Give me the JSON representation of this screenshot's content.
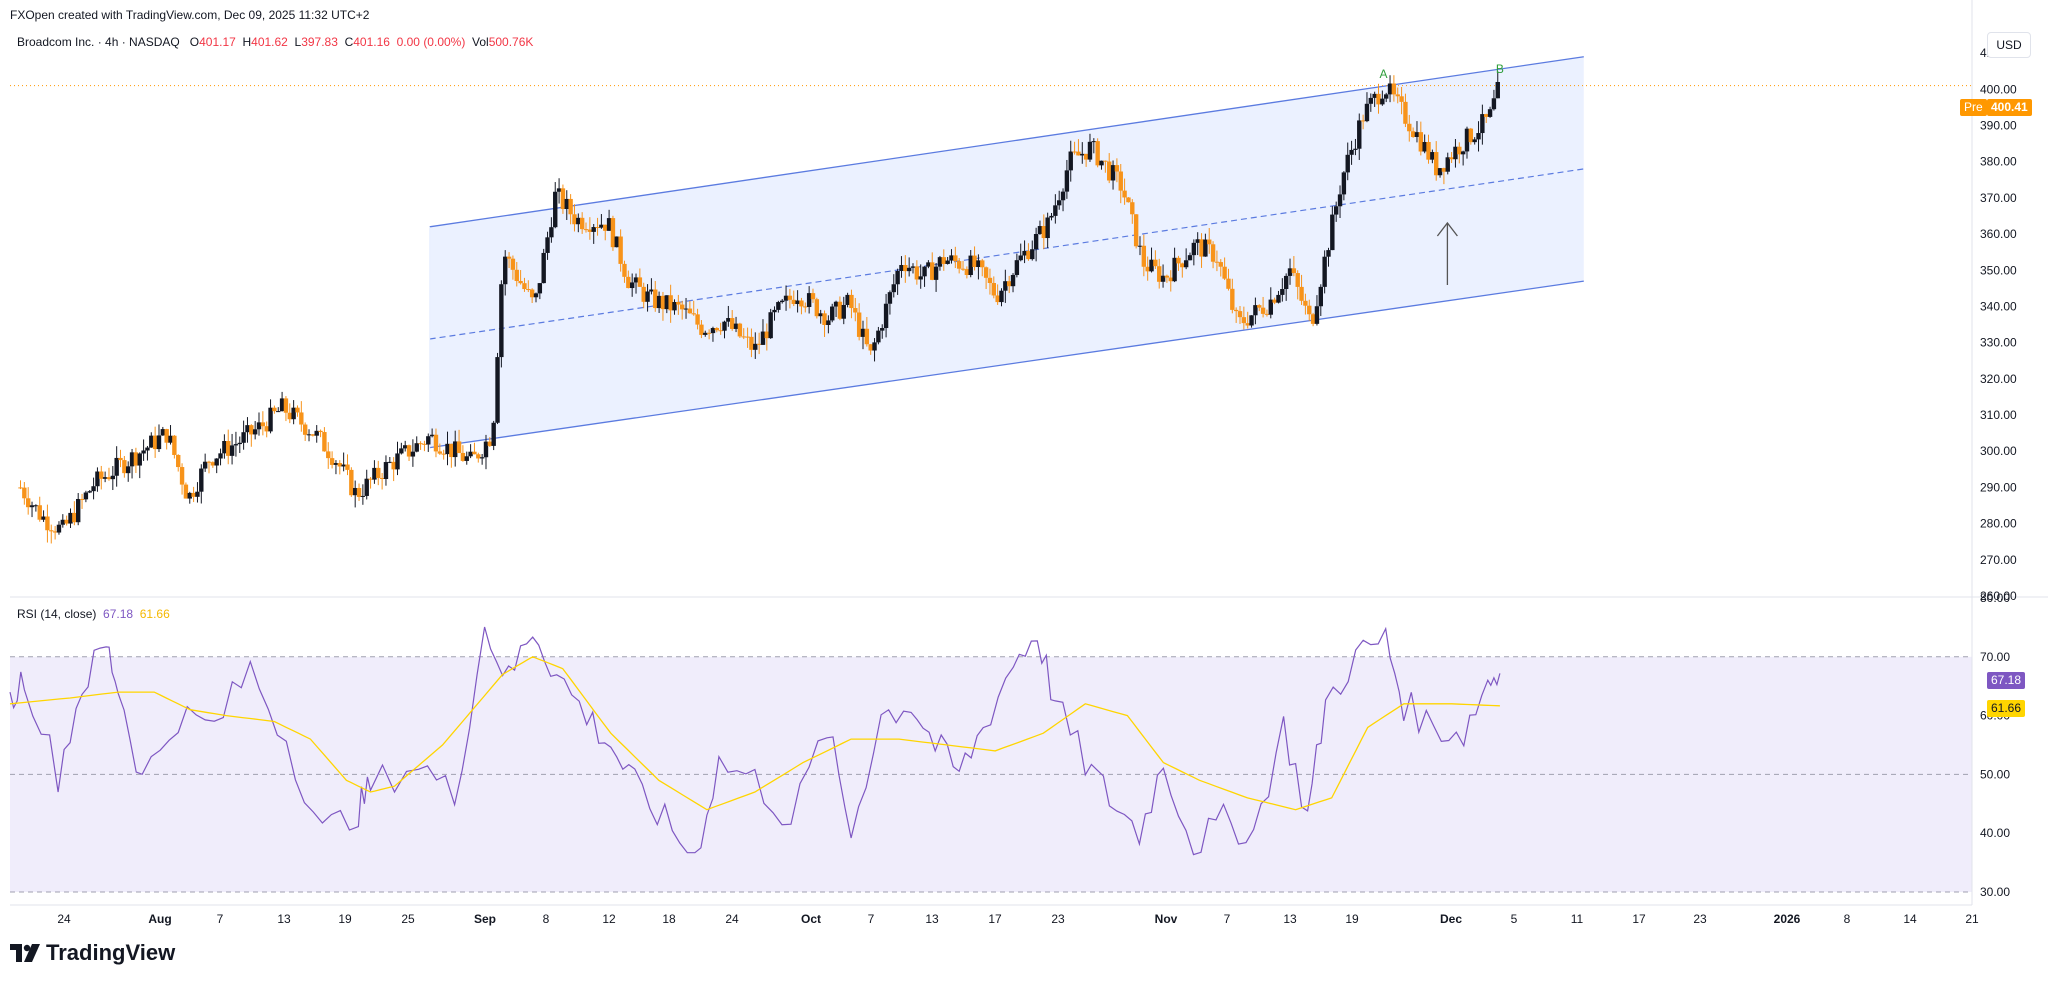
{
  "header": {
    "credit": "FXOpen created with TradingView.com, Dec 09, 2025 11:32 UTC+2",
    "symbol": "Broadcom Inc. · 4h · NASDAQ",
    "o_label": "O",
    "o": "401.17",
    "h_label": "H",
    "h": "401.62",
    "l_label": "L",
    "l": "397.83",
    "c_label": "C",
    "c": "401.16",
    "chg": "0.00 (0.00%)",
    "vol_label": "Vol",
    "vol": "500.76K"
  },
  "currency": "USD",
  "price_tag": {
    "label": "Pre",
    "value": "400.41"
  },
  "rsi": {
    "label": "RSI (14, close)",
    "value": "67.18",
    "ma_value": "61.66"
  },
  "brand": "TradingView",
  "chart_data": [
    {
      "type": "candlestick",
      "title": "Broadcom Inc. · 4h · NASDAQ",
      "ylim": [
        260,
        415
      ],
      "y_ticks": [
        "410.00",
        "400.00",
        "390.00",
        "380.00",
        "370.00",
        "360.00",
        "350.00",
        "340.00",
        "330.00",
        "320.00",
        "310.00",
        "300.00",
        "290.00",
        "280.00",
        "270.00",
        "260.00"
      ],
      "x_ticks": [
        "24",
        "Aug",
        "7",
        "13",
        "19",
        "25",
        "Sep",
        "8",
        "12",
        "18",
        "24",
        "Oct",
        "7",
        "13",
        "17",
        "23",
        "Nov",
        "7",
        "13",
        "19",
        "Dec",
        "5",
        "11",
        "17",
        "23",
        "2026",
        "8",
        "14",
        "21"
      ],
      "x_range_days": [
        "2025-07-20",
        "2026-01-23"
      ],
      "close_path": [
        [
          "2025-07-21",
          290
        ],
        [
          "2025-07-23",
          282
        ],
        [
          "2025-07-25",
          278
        ],
        [
          "2025-07-28",
          291
        ],
        [
          "2025-07-31",
          297
        ],
        [
          "2025-08-04",
          305
        ],
        [
          "2025-08-06",
          287
        ],
        [
          "2025-08-08",
          298
        ],
        [
          "2025-08-11",
          303
        ],
        [
          "2025-08-13",
          307
        ],
        [
          "2025-08-15",
          312
        ],
        [
          "2025-08-18",
          305
        ],
        [
          "2025-08-20",
          298
        ],
        [
          "2025-08-22",
          288
        ],
        [
          "2025-08-25",
          296
        ],
        [
          "2025-08-27",
          300
        ],
        [
          "2025-08-29",
          304
        ],
        [
          "2025-09-02",
          297
        ],
        [
          "2025-09-04",
          305
        ],
        [
          "2025-09-05",
          355
        ],
        [
          "2025-09-08",
          340
        ],
        [
          "2025-09-10",
          371
        ],
        [
          "2025-09-12",
          364
        ],
        [
          "2025-09-15",
          363
        ],
        [
          "2025-09-17",
          347
        ],
        [
          "2025-09-19",
          342
        ],
        [
          "2025-09-22",
          339
        ],
        [
          "2025-09-24",
          334
        ],
        [
          "2025-09-26",
          336
        ],
        [
          "2025-09-29",
          328
        ],
        [
          "2025-10-01",
          338
        ],
        [
          "2025-10-03",
          344
        ],
        [
          "2025-10-06",
          337
        ],
        [
          "2025-10-08",
          341
        ],
        [
          "2025-10-10",
          326
        ],
        [
          "2025-10-13",
          353
        ],
        [
          "2025-10-15",
          348
        ],
        [
          "2025-10-17",
          353
        ],
        [
          "2025-10-20",
          351
        ],
        [
          "2025-10-22",
          343
        ],
        [
          "2025-10-24",
          352
        ],
        [
          "2025-10-27",
          363
        ],
        [
          "2025-10-29",
          380
        ],
        [
          "2025-10-31",
          384
        ],
        [
          "2025-11-03",
          373
        ],
        [
          "2025-11-05",
          352
        ],
        [
          "2025-11-07",
          348
        ],
        [
          "2025-11-10",
          357
        ],
        [
          "2025-11-12",
          354
        ],
        [
          "2025-11-14",
          335
        ],
        [
          "2025-11-17",
          341
        ],
        [
          "2025-11-19",
          350
        ],
        [
          "2025-11-21",
          335
        ],
        [
          "2025-11-24",
          376
        ],
        [
          "2025-11-26",
          393
        ],
        [
          "2025-11-28",
          401
        ],
        [
          "2025-12-01",
          388
        ],
        [
          "2025-12-03",
          378
        ],
        [
          "2025-12-05",
          384
        ],
        [
          "2025-12-08",
          392
        ],
        [
          "2025-12-09",
          401
        ]
      ],
      "channel": {
        "start_date": "2025-08-29",
        "end_date": "2025-12-17",
        "upper": [
          362,
          409
        ],
        "middle": [
          331,
          378
        ],
        "lower": [
          301,
          347
        ]
      },
      "annotations": [
        "A",
        "B"
      ],
      "last_price_line": 401
    },
    {
      "type": "line",
      "title": "RSI (14, close)",
      "ylim": [
        30,
        80
      ],
      "y_ticks": [
        "80.00",
        "70.00",
        "60.00",
        "50.00",
        "40.00",
        "30.00"
      ],
      "band": [
        30,
        70
      ],
      "levels": [
        70,
        50,
        30
      ],
      "series": [
        {
          "name": "RSI",
          "color": "#7e57c2",
          "values": [
            [
              0,
              62
            ],
            [
              0.12,
              67
            ],
            [
              0.4,
              50
            ],
            [
              0.6,
              65
            ],
            [
              0.8,
              72
            ],
            [
              0.9,
              65
            ],
            [
              1.1,
              49
            ],
            [
              1.4,
              60
            ],
            [
              1.7,
              58
            ],
            [
              2.0,
              68
            ],
            [
              2.3,
              56
            ],
            [
              2.6,
              40
            ],
            [
              2.9,
              44
            ],
            [
              3.0,
              48
            ],
            [
              3.4,
              52
            ],
            [
              3.7,
              46
            ],
            [
              3.95,
              75
            ],
            [
              4.15,
              66
            ],
            [
              4.35,
              75
            ],
            [
              4.55,
              67
            ],
            [
              4.8,
              60
            ],
            [
              5.0,
              55
            ],
            [
              5.2,
              48
            ],
            [
              5.45,
              42
            ],
            [
              5.7,
              36
            ],
            [
              5.9,
              52
            ],
            [
              6.2,
              49
            ],
            [
              6.5,
              42
            ],
            [
              6.8,
              58
            ],
            [
              7.0,
              40
            ],
            [
              7.25,
              60
            ],
            [
              7.5,
              62
            ],
            [
              7.7,
              55
            ],
            [
              7.9,
              50
            ],
            [
              8.1,
              58
            ],
            [
              8.35,
              69
            ],
            [
              8.55,
              74
            ],
            [
              8.7,
              62
            ],
            [
              8.95,
              52
            ],
            [
              9.15,
              46
            ],
            [
              9.4,
              40
            ],
            [
              9.6,
              52
            ],
            [
              9.85,
              38
            ],
            [
              10.1,
              42
            ],
            [
              10.35,
              40
            ],
            [
              10.6,
              58
            ],
            [
              10.8,
              43
            ],
            [
              10.95,
              62
            ],
            [
              11.2,
              70
            ],
            [
              11.45,
              73
            ],
            [
              11.6,
              62
            ],
            [
              11.85,
              58
            ],
            [
              12.1,
              57
            ],
            [
              12.3,
              66
            ],
            [
              12.4,
              67.18
            ]
          ]
        },
        {
          "name": "RSI-based MA",
          "color": "#ffd500",
          "values": [
            [
              0,
              62
            ],
            [
              0.5,
              63
            ],
            [
              0.9,
              64
            ],
            [
              1.2,
              64
            ],
            [
              1.5,
              61
            ],
            [
              1.8,
              60
            ],
            [
              2.2,
              59
            ],
            [
              2.5,
              56
            ],
            [
              2.8,
              49
            ],
            [
              3.0,
              47
            ],
            [
              3.2,
              48
            ],
            [
              3.6,
              55
            ],
            [
              4.1,
              67
            ],
            [
              4.35,
              70
            ],
            [
              4.6,
              68
            ],
            [
              5.0,
              57
            ],
            [
              5.4,
              49
            ],
            [
              5.8,
              44
            ],
            [
              6.2,
              47
            ],
            [
              6.6,
              52
            ],
            [
              7.0,
              56
            ],
            [
              7.4,
              56
            ],
            [
              7.8,
              55
            ],
            [
              8.2,
              54
            ],
            [
              8.6,
              57
            ],
            [
              8.95,
              62
            ],
            [
              9.3,
              60
            ],
            [
              9.6,
              52
            ],
            [
              9.9,
              49
            ],
            [
              10.3,
              46
            ],
            [
              10.7,
              44
            ],
            [
              11.0,
              46
            ],
            [
              11.3,
              58
            ],
            [
              11.6,
              62
            ],
            [
              12.0,
              62
            ],
            [
              12.4,
              61.66
            ]
          ]
        }
      ],
      "value": 67.18,
      "ma_value": 61.66
    }
  ],
  "colors": {
    "up": "#131722",
    "down": "#f7931a",
    "channel": "#5b7be0",
    "channel_fill": "#e8efff",
    "rsi": "#7e57c2",
    "rsi_ma": "#ffd500",
    "rsi_band": "#f0edfb",
    "label_green": "#2e9e3a"
  }
}
